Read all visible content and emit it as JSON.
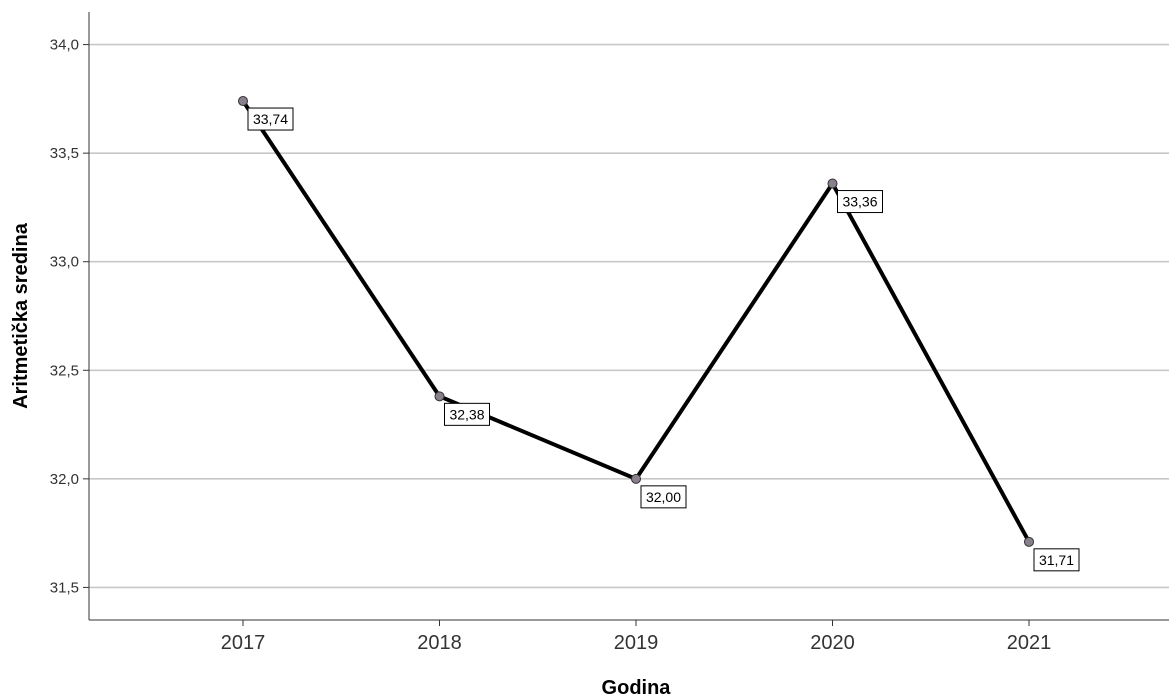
{
  "chart_data": {
    "type": "line",
    "title": "",
    "xlabel": "Godina",
    "ylabel": "Aritmetička sredina",
    "categories": [
      "2017",
      "2018",
      "2019",
      "2020",
      "2021"
    ],
    "values": [
      33.74,
      32.38,
      32.0,
      33.36,
      31.71
    ],
    "data_labels": [
      "33,74",
      "32,38",
      "32,00",
      "33,36",
      "31,71"
    ],
    "ylim": [
      31.35,
      34.15
    ],
    "yticks": [
      31.5,
      32.0,
      32.5,
      33.0,
      33.5,
      34.0
    ],
    "ytick_labels": [
      "31,5",
      "32,0",
      "32,5",
      "33,0",
      "33,5",
      "34,0"
    ],
    "grid": "horizontal",
    "legend": "none",
    "colors": {
      "line": "#000000",
      "marker_fill": "#8a7f8c",
      "gridline": "#c8c8c8",
      "axis": "#333333"
    }
  }
}
